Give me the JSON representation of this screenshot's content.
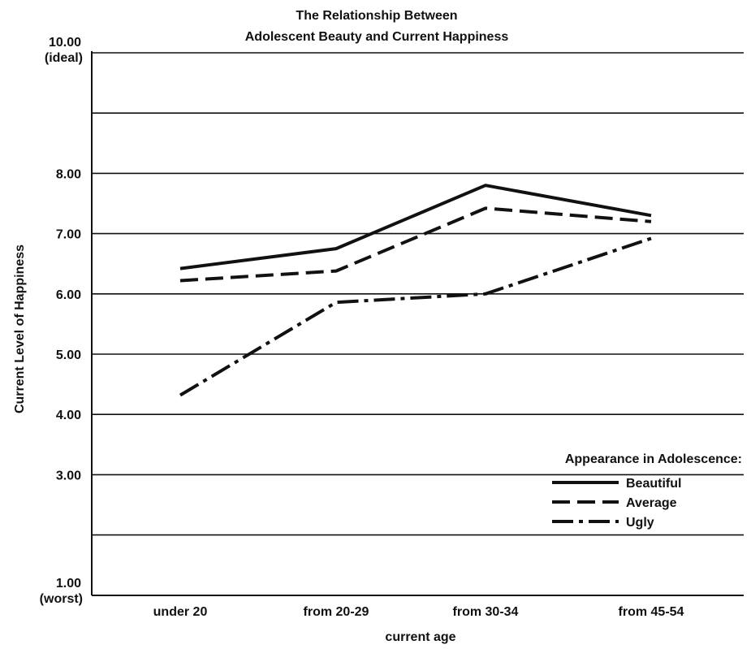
{
  "chart_data": {
    "type": "line",
    "title_lines": [
      "The Relationship Between",
      "Adolescent Beauty and Current Happiness"
    ],
    "xlabel": "current age",
    "ylabel": "Current Level of Happiness",
    "categories": [
      "under 20",
      "from 20-29",
      "from 30-34",
      "from 45-54"
    ],
    "ylim": [
      1,
      10
    ],
    "yticks": [
      {
        "value": 10,
        "label": "10.00",
        "sublabel": "(ideal)"
      },
      {
        "value": 8,
        "label": "8.00"
      },
      {
        "value": 7,
        "label": "7.00"
      },
      {
        "value": 6,
        "label": "6.00"
      },
      {
        "value": 5,
        "label": "5.00"
      },
      {
        "value": 4,
        "label": "4.00"
      },
      {
        "value": 3,
        "label": "3.00"
      },
      {
        "value": 1,
        "label": "1.00",
        "sublabel": "(worst)"
      }
    ],
    "gridlines": [
      10,
      9,
      8,
      7,
      6,
      5,
      4,
      3,
      2
    ],
    "grid": true,
    "legend": {
      "title": "Appearance in Adolescence:",
      "placement": "bottom-right"
    },
    "series": [
      {
        "name": "Beautiful",
        "style": "solid",
        "values": [
          6.42,
          6.75,
          7.8,
          7.3
        ]
      },
      {
        "name": "Average",
        "style": "dashed",
        "values": [
          6.22,
          6.38,
          7.42,
          7.2
        ]
      },
      {
        "name": "Ugly",
        "style": "dashdot",
        "values": [
          4.32,
          5.86,
          6.0,
          6.92
        ]
      }
    ]
  }
}
